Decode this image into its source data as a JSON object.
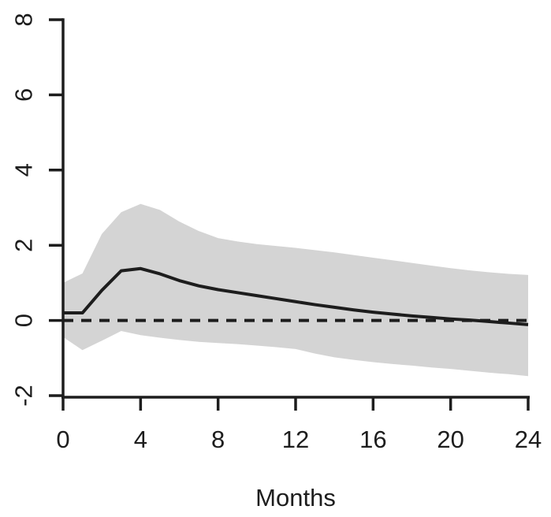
{
  "chart_data": {
    "type": "area",
    "title": "",
    "xlabel": "Months",
    "ylabel": "",
    "xlim": [
      0,
      24
    ],
    "ylim": [
      -2,
      8
    ],
    "x_ticks": [
      0,
      4,
      8,
      12,
      16,
      20,
      24
    ],
    "y_ticks": [
      -2,
      0,
      2,
      4,
      6,
      8
    ],
    "grid": false,
    "legend_position": "none",
    "x": [
      0,
      1,
      2,
      3,
      4,
      5,
      6,
      7,
      8,
      9,
      10,
      11,
      12,
      13,
      14,
      15,
      16,
      17,
      18,
      19,
      20,
      21,
      22,
      23,
      24
    ],
    "series": [
      {
        "name": "impulse-response",
        "type": "line",
        "style": "solid",
        "color": "#1d1d1d",
        "values": [
          0.2,
          0.2,
          0.8,
          1.32,
          1.38,
          1.24,
          1.06,
          0.92,
          0.82,
          0.74,
          0.66,
          0.58,
          0.5,
          0.42,
          0.35,
          0.28,
          0.22,
          0.17,
          0.12,
          0.08,
          0.04,
          0.01,
          -0.03,
          -0.07,
          -0.11
        ]
      },
      {
        "name": "confidence-band-upper",
        "type": "band-edge",
        "values": [
          1.0,
          1.25,
          2.3,
          2.88,
          3.1,
          2.94,
          2.63,
          2.38,
          2.19,
          2.1,
          2.03,
          1.98,
          1.93,
          1.87,
          1.81,
          1.74,
          1.67,
          1.6,
          1.53,
          1.46,
          1.39,
          1.33,
          1.28,
          1.24,
          1.21
        ]
      },
      {
        "name": "confidence-band-lower",
        "type": "band-edge",
        "values": [
          -0.44,
          -0.79,
          -0.54,
          -0.28,
          -0.39,
          -0.46,
          -0.52,
          -0.57,
          -0.6,
          -0.63,
          -0.67,
          -0.71,
          -0.76,
          -0.88,
          -0.98,
          -1.05,
          -1.11,
          -1.16,
          -1.2,
          -1.25,
          -1.29,
          -1.34,
          -1.39,
          -1.43,
          -1.48
        ]
      },
      {
        "name": "zero-reference",
        "type": "hline",
        "value": 0,
        "style": "dashed",
        "color": "#1d1d1d"
      }
    ],
    "band_color": "#d4d4d4",
    "axis_color": "#1d1d1d",
    "text_color": "#1d1d1d"
  }
}
